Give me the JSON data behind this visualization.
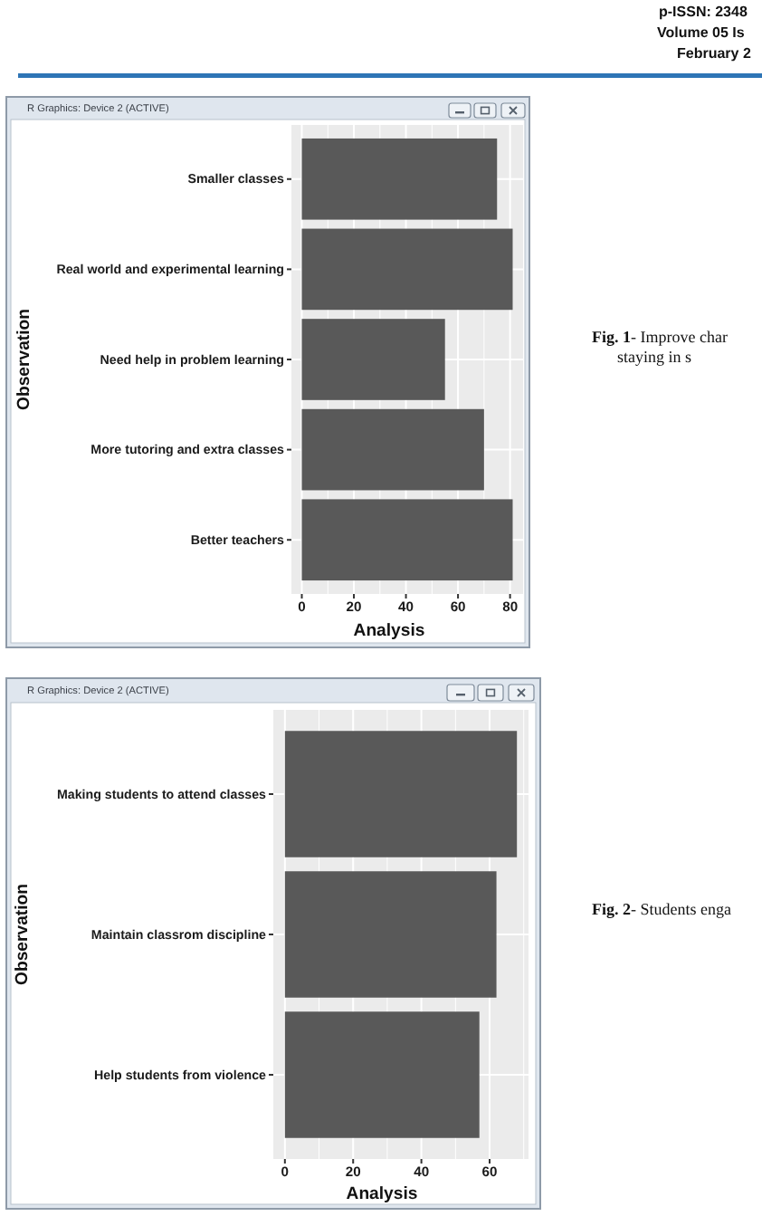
{
  "chart_data": [
    {
      "type": "bar",
      "orientation": "horizontal",
      "title": "R Graphics: Device 2 (ACTIVE)",
      "categories": [
        "Smaller classes",
        "Real world and experimental learning",
        "Need help in problem learning",
        "More tutoring and extra classes",
        "Better teachers"
      ],
      "values": [
        75,
        81,
        55,
        70,
        81
      ],
      "color": "#595959",
      "xlabel": "Analysis",
      "ylabel": "Observation",
      "xlim": [
        -4,
        85
      ],
      "xticks": [
        0,
        {
          "value": 10,
          "label": null
        },
        20,
        {
          "value": 30,
          "label": null
        },
        40,
        {
          "value": 50,
          "label": null
        },
        60,
        {
          "value": 70,
          "label": null
        },
        80
      ],
      "grid": true,
      "annotations": [
        "p-ISSN: 2348",
        "Volume 05 Is",
        "February 2",
        "Fig. 1- Improve char",
        "staying in s"
      ]
    },
    {
      "type": "bar",
      "orientation": "horizontal",
      "title": "R Graphics: Device 2 (ACTIVE)",
      "categories": [
        "Making students to attend classes",
        "Maintain classrom discipline",
        "Help students from violence"
      ],
      "values": [
        68,
        62,
        57
      ],
      "color": "#595959",
      "xlabel": "Analysis",
      "ylabel": "Observation",
      "xlim": [
        -3.4,
        71.4
      ],
      "xticks": [
        0,
        {
          "value": 10,
          "label": null
        },
        20,
        {
          "value": 30,
          "label": null
        },
        40,
        {
          "value": 50,
          "label": null
        },
        60,
        {
          "value": 70,
          "label": null
        }
      ],
      "grid": true,
      "annotations": [
        "Fig. 2- Students enga"
      ]
    }
  ]
}
